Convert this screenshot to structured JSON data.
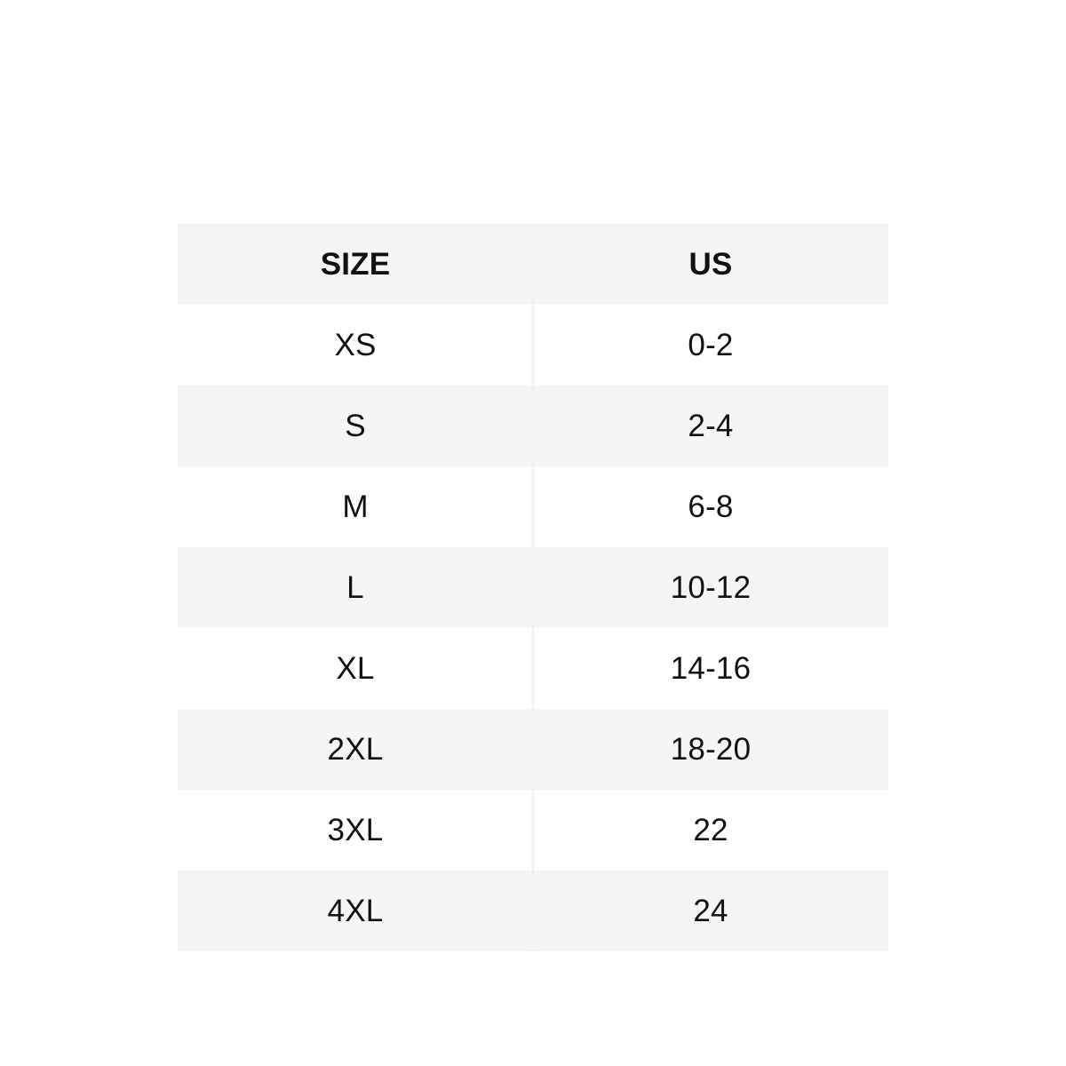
{
  "chart_data": {
    "type": "table",
    "columns": [
      "SIZE",
      "US"
    ],
    "rows": [
      [
        "XS",
        "0-2"
      ],
      [
        "S",
        "2-4"
      ],
      [
        "M",
        "6-8"
      ],
      [
        "L",
        "10-12"
      ],
      [
        "XL",
        "14-16"
      ],
      [
        "2XL",
        "18-20"
      ],
      [
        "3XL",
        "22"
      ],
      [
        "4XL",
        "24"
      ]
    ]
  },
  "colors": {
    "stripe": "#f5f5f5",
    "row": "#ffffff",
    "divider": "#f1f1f1",
    "text": "#111111",
    "background": "#ffffff"
  }
}
